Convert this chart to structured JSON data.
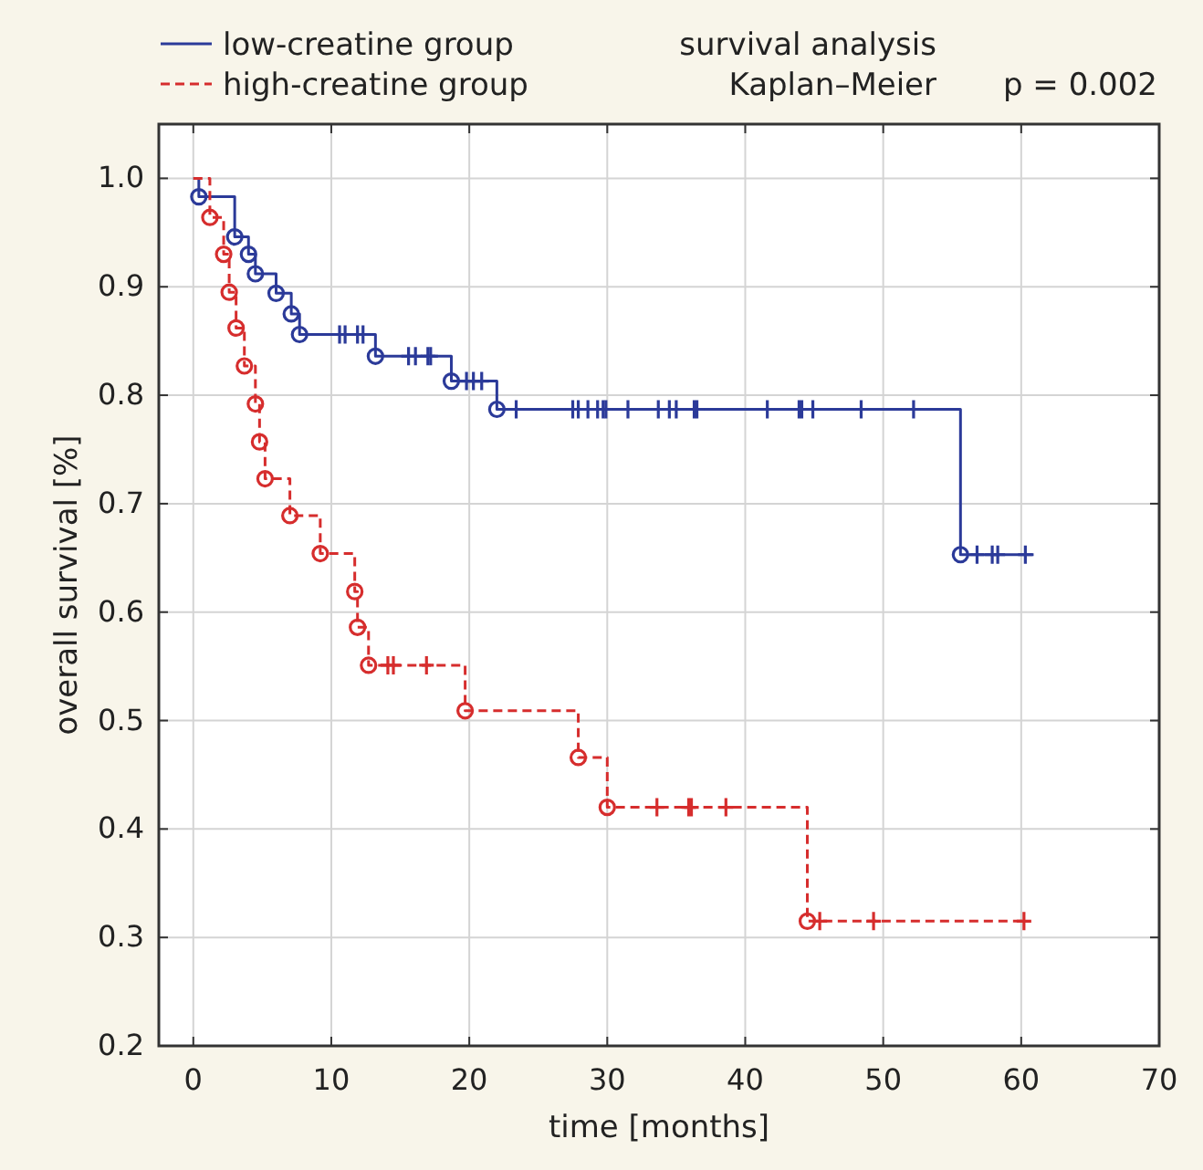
{
  "chart_data": {
    "type": "step",
    "title": "survival analysis",
    "subtitle": "Kaplan–Meier",
    "annotations": [
      "p = 0.002"
    ],
    "xlabel": "time [months]",
    "ylabel": "overall survival [%]",
    "xlim": [
      -2.5,
      70
    ],
    "xticks": [
      0,
      10,
      20,
      30,
      40,
      50,
      60,
      70
    ],
    "ylim": [
      0.2,
      1.05
    ],
    "yticks": [
      {
        "value": 0.2,
        "label": "0.2"
      },
      {
        "value": 0.3,
        "label": "0.3"
      },
      {
        "value": 0.4,
        "label": "0.4"
      },
      {
        "value": 0.5,
        "label": "0.5"
      },
      {
        "value": 0.6,
        "label": "0.6"
      },
      {
        "value": 0.7,
        "label": "0.7"
      },
      {
        "value": 0.8,
        "label": "0.8"
      },
      {
        "value": 0.9,
        "label": "0.9"
      },
      {
        "value": 1.0,
        "label": "1.0"
      }
    ],
    "grid": true,
    "legend": "top left",
    "series": [
      {
        "name": "low-creatine group",
        "color": "#2b3a99",
        "line_style": "solid",
        "x": [
          0,
          0.4,
          3.0,
          4.0,
          4.5,
          6.0,
          7.1,
          7.7,
          13.2,
          18.7,
          22.0,
          55.6,
          60.9
        ],
        "values": [
          1.0,
          0.983,
          0.946,
          0.93,
          0.912,
          0.894,
          0.875,
          0.856,
          0.836,
          0.813,
          0.787,
          0.653,
          0.653
        ]
      },
      {
        "name": "high-creatine group",
        "color": "#d62d2d",
        "line_style": "dashed",
        "x": [
          0,
          1.2,
          2.2,
          2.6,
          3.1,
          3.7,
          4.5,
          4.8,
          5.2,
          7.0,
          9.2,
          11.7,
          11.9,
          12.7,
          19.7,
          27.9,
          30.0,
          44.5,
          60.3
        ],
        "values": [
          1.0,
          0.964,
          0.93,
          0.895,
          0.862,
          0.827,
          0.792,
          0.757,
          0.723,
          0.689,
          0.654,
          0.619,
          0.586,
          0.551,
          0.509,
          0.466,
          0.42,
          0.315,
          0.315
        ]
      },
      {
        "type": "scatter",
        "color": "#2b3a99",
        "marker": "circle",
        "x": [
          0.4,
          3.0,
          4.0,
          4.5,
          6.0,
          7.1,
          7.7,
          13.2,
          18.7,
          22.0,
          55.6
        ],
        "values": [
          0.983,
          0.946,
          0.93,
          0.912,
          0.894,
          0.875,
          0.856,
          0.836,
          0.813,
          0.787,
          0.653
        ]
      },
      {
        "type": "scatter",
        "color": "#2b3a99",
        "marker": "cross",
        "x": [
          10.6,
          11.0,
          11.9,
          12.3,
          15.6,
          16.1,
          17.0,
          17.2,
          19.8,
          20.3,
          20.9,
          23.4,
          27.5,
          27.9,
          28.6,
          29.3,
          29.7,
          29.9,
          31.5,
          33.7,
          34.5,
          35.0,
          36.3,
          36.5,
          41.6,
          43.9,
          44.1,
          44.9,
          48.4,
          52.2,
          56.8,
          57.9,
          58.3,
          60.3
        ],
        "values": [
          0.856,
          0.856,
          0.856,
          0.856,
          0.836,
          0.836,
          0.836,
          0.836,
          0.813,
          0.813,
          0.813,
          0.787,
          0.787,
          0.787,
          0.787,
          0.787,
          0.787,
          0.787,
          0.787,
          0.787,
          0.787,
          0.787,
          0.787,
          0.787,
          0.787,
          0.787,
          0.787,
          0.787,
          0.787,
          0.787,
          0.653,
          0.653,
          0.653,
          0.653
        ]
      },
      {
        "type": "scatter",
        "color": "#d62d2d",
        "marker": "circle",
        "x": [
          1.2,
          2.2,
          2.6,
          3.1,
          3.7,
          4.5,
          4.8,
          5.2,
          7.0,
          9.2,
          11.7,
          11.9,
          12.7,
          19.7,
          27.9,
          30.0,
          44.5
        ],
        "values": [
          0.964,
          0.93,
          0.895,
          0.862,
          0.827,
          0.792,
          0.757,
          0.723,
          0.689,
          0.654,
          0.619,
          0.586,
          0.551,
          0.509,
          0.466,
          0.42,
          0.315
        ]
      },
      {
        "type": "scatter",
        "color": "#d62d2d",
        "marker": "cross",
        "x": [
          14.1,
          14.5,
          16.9,
          33.6,
          35.9,
          36.1,
          38.6,
          45.4,
          49.3,
          60.2
        ],
        "values": [
          0.551,
          0.551,
          0.551,
          0.42,
          0.42,
          0.42,
          0.42,
          0.315,
          0.315,
          0.315
        ]
      }
    ]
  }
}
